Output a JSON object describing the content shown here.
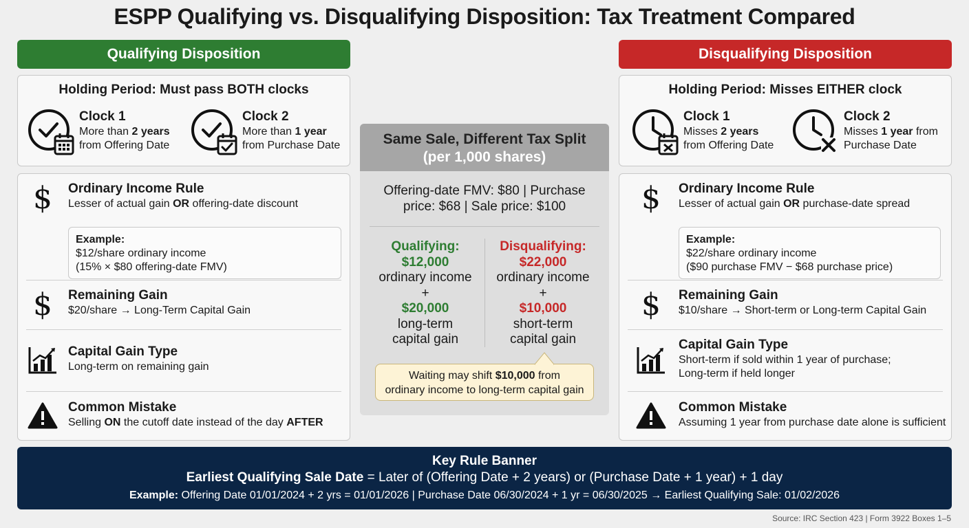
{
  "title": "ESPP Qualifying vs. Disqualifying Disposition: Tax Treatment Compared",
  "qualifying": {
    "header": "Qualifying Disposition",
    "holding_title": "Holding Period: Must pass BOTH clocks",
    "clock1": {
      "title": "Clock 1",
      "line1_pre": "More than ",
      "line1_bold": "2 years",
      "line2": "from Offering Date"
    },
    "clock2": {
      "title": "Clock 2",
      "line1_pre": "More than ",
      "line1_bold": "1 year",
      "line2": "from Purchase Date"
    },
    "ordinary": {
      "title": "Ordinary Income Rule",
      "desc_pre": "Lesser of actual gain ",
      "desc_bold": "OR",
      "desc_post": " offering-date discount",
      "example_title": "Example:",
      "example_line1": "$12/share ordinary income",
      "example_line2": "(15% × $80 offering-date FMV)"
    },
    "remaining": {
      "title": "Remaining Gain",
      "desc": "$20/share → Long-Term Capital Gain"
    },
    "cgtype": {
      "title": "Capital Gain Type",
      "desc1": "Long-term on remaining gain"
    },
    "mistake": {
      "title": "Common Mistake",
      "d_pre": "Selling ",
      "d_b1": "ON",
      "d_mid": " the cutoff date instead of the day ",
      "d_b2": "AFTER"
    }
  },
  "disqualifying": {
    "header": "Disqualifying Disposition",
    "holding_title": "Holding Period: Misses EITHER clock",
    "clock1": {
      "title": "Clock 1",
      "line1_pre": "Misses ",
      "line1_bold": "2 years",
      "line2": "from Offering Date"
    },
    "clock2": {
      "title": "Clock 2",
      "line1_pre": "Misses ",
      "line1_bold": "1 year",
      "line1_post": " from",
      "line2": "Purchase Date"
    },
    "ordinary": {
      "title": "Ordinary Income Rule",
      "desc_pre": "Lesser of actual gain ",
      "desc_bold": "OR",
      "desc_post": " purchase-date spread",
      "example_title": "Example:",
      "example_line1": "$22/share ordinary income",
      "example_line2": "($90 purchase FMV − $68 purchase price)"
    },
    "remaining": {
      "title": "Remaining Gain",
      "desc": "$10/share → Short-term or Long-term Capital Gain"
    },
    "cgtype": {
      "title": "Capital Gain Type",
      "desc1": "Short-term if sold within 1 year of purchase;",
      "desc2": "Long-term if held longer"
    },
    "mistake": {
      "title": "Common Mistake",
      "desc": "Assuming 1 year from purchase date alone is sufficient"
    }
  },
  "center": {
    "title1": "Same Sale, Different Tax Split",
    "title2": "(per 1,000 shares)",
    "prices1": "Offering-date FMV: $80 | Purchase",
    "prices2": "price: $68 | Sale price: $100",
    "qual": {
      "label": "Qualifying:",
      "amount1": "$12,000",
      "text1": "ordinary income",
      "plus": "+",
      "amount2": "$20,000",
      "text2a": "long-term",
      "text2b": "capital gain"
    },
    "disq": {
      "label": "Disqualifying:",
      "amount1": "$22,000",
      "text1": "ordinary income",
      "plus": "+",
      "amount2": "$10,000",
      "text2a": "short-term",
      "text2b": "capital gain"
    },
    "callout_pre": "Waiting may shift ",
    "callout_bold": "$10,000",
    "callout_post": " from",
    "callout_line2": "ordinary income to long-term capital gain"
  },
  "banner": {
    "title": "Key Rule Banner",
    "rule_bold": "Earliest Qualifying Sale Date",
    "rule_rest": " = Later of (Offering Date + 2 years) or (Purchase Date + 1 year) + 1 day",
    "example_bold": "Example:",
    "example_rest": " Offering Date 01/01/2024 + 2 yrs = 01/01/2026 | Purchase Date 06/30/2024 + 1 yr = 06/30/2025 → Earliest Qualifying Sale: 01/02/2026"
  },
  "source": "Source: IRC Section 423 | Form 3922 Boxes 1–5",
  "colors": {
    "green": "#2e7d32",
    "red": "#c62828",
    "navy": "#0b2545",
    "callout": "#fdf3d6"
  }
}
